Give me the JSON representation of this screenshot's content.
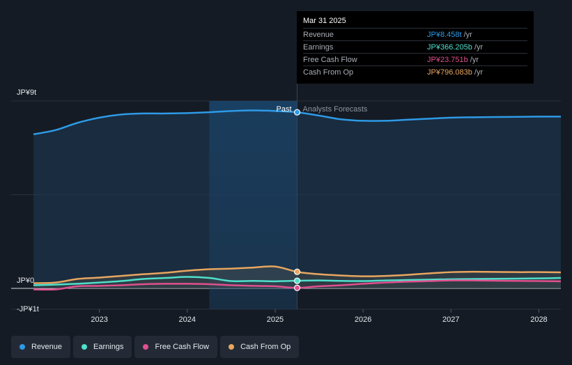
{
  "chart_data": {
    "type": "line",
    "y_axis_labels": [
      "JP¥9t",
      "JP¥0",
      "-JP¥1t"
    ],
    "ylim": [
      -1,
      9
    ],
    "x_ticks": [
      2023,
      2024,
      2025,
      2026,
      2027,
      2028
    ],
    "xlim": [
      2022.25,
      2028.25
    ],
    "divider_x": 2025.25,
    "past_label": "Past",
    "forecast_label": "Analysts Forecasts",
    "highlight_range": [
      2024.25,
      2025.25
    ],
    "series": [
      {
        "name": "Revenue",
        "color": "#2e9ae6",
        "x": [
          2022.25,
          2022.5,
          2022.75,
          2023.0,
          2023.25,
          2023.5,
          2023.75,
          2024.0,
          2024.25,
          2024.5,
          2024.75,
          2025.0,
          2025.25,
          2025.5,
          2025.75,
          2026.0,
          2026.25,
          2026.5,
          2026.75,
          2027.0,
          2027.25,
          2027.5,
          2027.75,
          2028.0,
          2028.25
        ],
        "y": [
          7.4,
          7.6,
          7.95,
          8.2,
          8.35,
          8.4,
          8.4,
          8.42,
          8.46,
          8.52,
          8.55,
          8.52,
          8.458,
          8.3,
          8.12,
          8.05,
          8.05,
          8.1,
          8.15,
          8.2,
          8.22,
          8.23,
          8.24,
          8.25,
          8.25
        ]
      },
      {
        "name": "Earnings",
        "color": "#4fe0cc",
        "x": [
          2022.25,
          2022.5,
          2022.75,
          2023.0,
          2023.25,
          2023.5,
          2023.75,
          2024.0,
          2024.25,
          2024.5,
          2024.75,
          2025.0,
          2025.25,
          2025.5,
          2025.75,
          2026.0,
          2026.25,
          2026.5,
          2026.75,
          2027.0,
          2027.25,
          2027.5,
          2027.75,
          2028.0,
          2028.25
        ],
        "y": [
          0.15,
          0.18,
          0.22,
          0.28,
          0.35,
          0.45,
          0.5,
          0.55,
          0.5,
          0.35,
          0.36,
          0.34,
          0.366,
          0.38,
          0.36,
          0.35,
          0.38,
          0.4,
          0.42,
          0.44,
          0.45,
          0.46,
          0.47,
          0.48,
          0.5
        ]
      },
      {
        "name": "Free Cash Flow",
        "color": "#e0508f",
        "x": [
          2022.25,
          2022.5,
          2022.75,
          2023.0,
          2023.25,
          2023.5,
          2023.75,
          2024.0,
          2024.25,
          2024.5,
          2024.75,
          2025.0,
          2025.25,
          2025.5,
          2025.75,
          2026.0,
          2026.25,
          2026.5,
          2026.75,
          2027.0,
          2027.25,
          2027.5,
          2027.75,
          2028.0,
          2028.25
        ],
        "y": [
          -0.05,
          -0.05,
          0.1,
          0.12,
          0.15,
          0.2,
          0.22,
          0.22,
          0.2,
          0.15,
          0.12,
          0.1,
          0.024,
          0.1,
          0.15,
          0.22,
          0.28,
          0.32,
          0.35,
          0.38,
          0.38,
          0.37,
          0.36,
          0.35,
          0.34
        ]
      },
      {
        "name": "Cash From Op",
        "color": "#e8a660",
        "x": [
          2022.25,
          2022.5,
          2022.75,
          2023.0,
          2023.25,
          2023.5,
          2023.75,
          2024.0,
          2024.25,
          2024.5,
          2024.75,
          2025.0,
          2025.25,
          2025.5,
          2025.75,
          2026.0,
          2026.25,
          2026.5,
          2026.75,
          2027.0,
          2027.25,
          2027.5,
          2027.75,
          2028.0,
          2028.25
        ],
        "y": [
          0.25,
          0.28,
          0.45,
          0.52,
          0.6,
          0.68,
          0.75,
          0.85,
          0.92,
          0.95,
          1.0,
          1.05,
          0.796,
          0.68,
          0.62,
          0.58,
          0.6,
          0.65,
          0.72,
          0.78,
          0.8,
          0.79,
          0.78,
          0.78,
          0.77
        ]
      }
    ]
  },
  "tooltip": {
    "date": "Mar 31 2025",
    "rows": [
      {
        "label": "Revenue",
        "value": "JP¥8.458t",
        "unit": "/yr",
        "color": "#2e9ae6"
      },
      {
        "label": "Earnings",
        "value": "JP¥366.205b",
        "unit": "/yr",
        "color": "#4fe0cc"
      },
      {
        "label": "Free Cash Flow",
        "value": "JP¥23.751b",
        "unit": "/yr",
        "color": "#e0508f"
      },
      {
        "label": "Cash From Op",
        "value": "JP¥796.083b",
        "unit": "/yr",
        "color": "#e8a660"
      }
    ]
  },
  "legend": [
    {
      "label": "Revenue",
      "color": "#2e9ae6"
    },
    {
      "label": "Earnings",
      "color": "#4fe0cc"
    },
    {
      "label": "Free Cash Flow",
      "color": "#e0508f"
    },
    {
      "label": "Cash From Op",
      "color": "#e8a660"
    }
  ]
}
